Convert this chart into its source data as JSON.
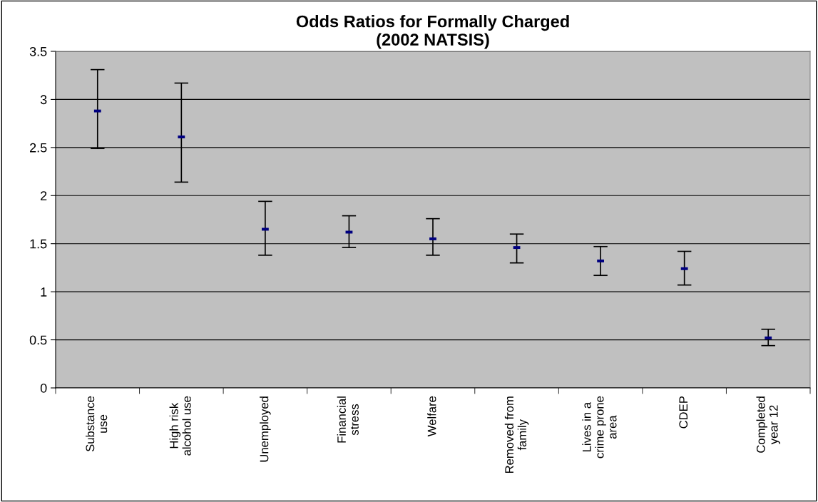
{
  "chart_data": {
    "type": "scatter",
    "title": "Odds Ratios for Formally Charged\n(2002 NATSIS)",
    "categories": [
      "Substance\nuse",
      "High risk\nalcohol use",
      "Unemployed",
      "Financial\nstress",
      "Welfare",
      "Removed from\nfamily",
      "Lives in a\ncrime prone\narea",
      "CDEP",
      "Completed\nyear 12"
    ],
    "series": [
      {
        "color": "#000080",
        "values": [
          2.88,
          2.61,
          1.65,
          1.62,
          1.55,
          1.46,
          1.32,
          1.24,
          0.52
        ],
        "errors": [
          [
            2.49,
            3.31
          ],
          [
            2.14,
            3.17
          ],
          [
            1.38,
            1.94
          ],
          [
            1.46,
            1.79
          ],
          [
            1.38,
            1.76
          ],
          [
            1.3,
            1.6
          ],
          [
            1.17,
            1.47
          ],
          [
            1.07,
            1.42
          ],
          [
            0.44,
            0.61
          ]
        ]
      }
    ],
    "ylim": [
      0,
      3.5
    ],
    "yticks": [
      0,
      0.5,
      1,
      1.5,
      2,
      2.5,
      3,
      3.5
    ],
    "grid": "y"
  }
}
